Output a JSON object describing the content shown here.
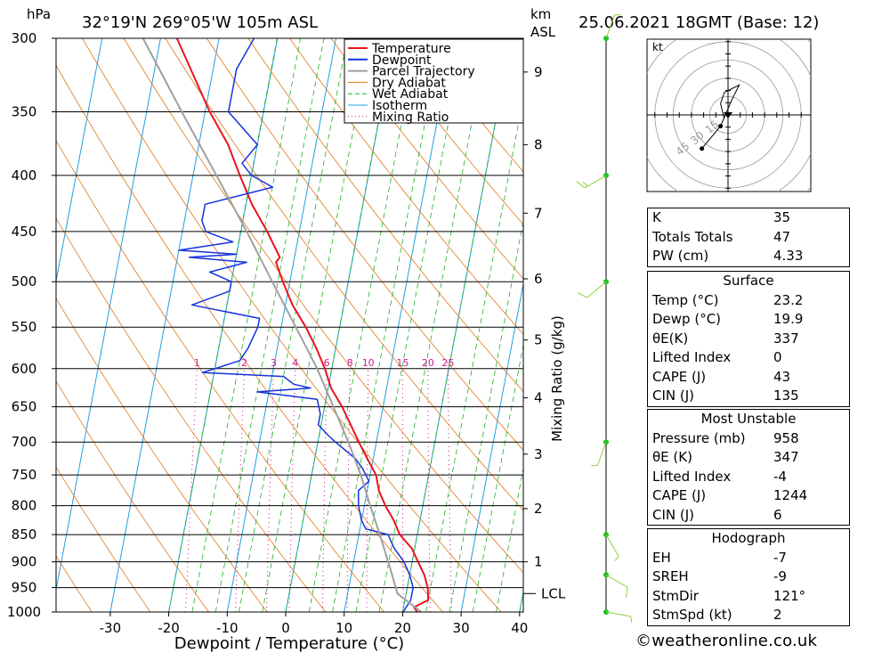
{
  "header": {
    "hpa": "hPa",
    "location": "32°19'N  269°05'W  105m  ASL",
    "km": "km",
    "asl": "ASL",
    "datetime": "25.06.2021  18GMT  (Base: 12)"
  },
  "chart_data": {
    "type": "line",
    "chart_kind": "skew-T log-P sounding",
    "xlabel": "Dewpoint / Temperature (°C)",
    "ylabel": "hPa",
    "y_scale": "log",
    "xlim": [
      -40,
      40
    ],
    "ylim": [
      1000,
      300
    ],
    "temperature_ticks": [
      "-30",
      "-20",
      "-10",
      "0",
      "10",
      "20",
      "30",
      "40"
    ],
    "pressure_ticks": [
      "300",
      "350",
      "400",
      "450",
      "500",
      "550",
      "600",
      "650",
      "700",
      "750",
      "800",
      "850",
      "900",
      "950",
      "1000"
    ],
    "height_km_ticks": [
      "1",
      "2",
      "3",
      "4",
      "5",
      "6",
      "7",
      "8",
      "9"
    ],
    "height_km_pressures": [
      900,
      805,
      718,
      638,
      565,
      497,
      433,
      375,
      322
    ],
    "lcl_label": "LCL",
    "lcl_pressure": 962,
    "mixing_ratio_axis_label": "Mixing Ratio (g/kg)",
    "mixing_ratio_values": [
      "1",
      "2",
      "3",
      "4",
      "6",
      "8",
      "10",
      "15",
      "20",
      "25"
    ],
    "legend": [
      "Temperature",
      "Dewpoint",
      "Parcel Trajectory",
      "Dry Adiabat",
      "Wet Adiabat",
      "Isotherm",
      "Mixing Ratio"
    ],
    "legend_position": "top-center",
    "colors": {
      "temperature": "#e8141e",
      "dewpoint": "#1432dc",
      "parcel": "#a0a0a0",
      "dry_adiabat": "#e07818",
      "wet_adiabat": "#20b020",
      "isotherm": "#20a0e0",
      "mixing_ratio": "#d01890",
      "wind": "#90d040"
    },
    "series": [
      {
        "name": "Temperature",
        "points": [
          [
            1000,
            22.5
          ],
          [
            990,
            21.8
          ],
          [
            975,
            24
          ],
          [
            950,
            23.5
          ],
          [
            925,
            22.5
          ],
          [
            900,
            21
          ],
          [
            875,
            19.5
          ],
          [
            850,
            17
          ],
          [
            825,
            15.5
          ],
          [
            800,
            13.6
          ],
          [
            775,
            12
          ],
          [
            750,
            11
          ],
          [
            725,
            9
          ],
          [
            700,
            7
          ],
          [
            650,
            3
          ],
          [
            625,
            0.5
          ],
          [
            600,
            -1.2
          ],
          [
            575,
            -3.3
          ],
          [
            550,
            -5.8
          ],
          [
            525,
            -8.8
          ],
          [
            500,
            -11.2
          ],
          [
            480,
            -13
          ],
          [
            475,
            -12.5
          ],
          [
            450,
            -15.5
          ],
          [
            425,
            -19
          ],
          [
            400,
            -22
          ],
          [
            375,
            -25
          ],
          [
            350,
            -29.2
          ],
          [
            300,
            -37.2
          ]
        ]
      },
      {
        "name": "Dewpoint",
        "points": [
          [
            1000,
            20.1
          ],
          [
            975,
            21
          ],
          [
            950,
            21
          ],
          [
            925,
            20
          ],
          [
            900,
            18.6
          ],
          [
            875,
            16.5
          ],
          [
            850,
            15
          ],
          [
            840,
            11
          ],
          [
            825,
            10
          ],
          [
            800,
            9
          ],
          [
            775,
            8.5
          ],
          [
            760,
            10
          ],
          [
            740,
            8.5
          ],
          [
            725,
            7
          ],
          [
            700,
            3
          ],
          [
            690,
            1.5
          ],
          [
            675,
            -0.5
          ],
          [
            660,
            -0.5
          ],
          [
            650,
            -1
          ],
          [
            640,
            -1.5
          ],
          [
            630,
            -12
          ],
          [
            625,
            -3
          ],
          [
            620,
            -6
          ],
          [
            610,
            -8
          ],
          [
            605,
            -22
          ],
          [
            600,
            -20
          ],
          [
            590,
            -16
          ],
          [
            575,
            -15
          ],
          [
            550,
            -14
          ],
          [
            540,
            -14
          ],
          [
            525,
            -26
          ],
          [
            510,
            -20
          ],
          [
            500,
            -20
          ],
          [
            490,
            -24
          ],
          [
            480,
            -18
          ],
          [
            475,
            -28
          ],
          [
            472,
            -20
          ],
          [
            468,
            -30
          ],
          [
            460,
            -21
          ],
          [
            450,
            -26
          ],
          [
            440,
            -27
          ],
          [
            425,
            -27
          ],
          [
            410,
            -16
          ],
          [
            400,
            -20
          ],
          [
            390,
            -22
          ],
          [
            375,
            -20
          ],
          [
            350,
            -26
          ],
          [
            320,
            -26
          ],
          [
            300,
            -24
          ]
        ]
      },
      {
        "name": "Parcel Trajectory",
        "points": [
          [
            1000,
            23.2
          ],
          [
            962,
            18.5
          ],
          [
            925,
            17
          ],
          [
            850,
            13.6
          ],
          [
            800,
            11
          ],
          [
            750,
            8.4
          ],
          [
            700,
            5.2
          ],
          [
            650,
            1.5
          ],
          [
            600,
            -2.5
          ],
          [
            550,
            -7.5
          ],
          [
            500,
            -13
          ],
          [
            450,
            -19
          ],
          [
            400,
            -26
          ],
          [
            350,
            -34
          ],
          [
            300,
            -43
          ]
        ]
      }
    ],
    "hodograph": {
      "unit_label": "kt",
      "ring_labels": [
        "15",
        "30",
        "45"
      ],
      "points": [
        [
          -1,
          -1
        ],
        [
          -2,
          3
        ],
        [
          -1,
          6
        ],
        [
          3,
          8
        ],
        [
          1,
          4
        ],
        [
          -2,
          -3
        ],
        [
          -7,
          -9
        ]
      ]
    },
    "wind_barbs": [
      {
        "pressure": 300,
        "dir": 20,
        "speed": 5
      },
      {
        "pressure": 400,
        "dir": 240,
        "speed": 15
      },
      {
        "pressure": 500,
        "dir": 230,
        "speed": 10
      },
      {
        "pressure": 700,
        "dir": 200,
        "speed": 5
      },
      {
        "pressure": 850,
        "dir": 150,
        "speed": 5
      },
      {
        "pressure": 925,
        "dir": 120,
        "speed": 10
      },
      {
        "pressure": 1000,
        "dir": 100,
        "speed": 5
      }
    ]
  },
  "stats": {
    "general": [
      {
        "label": "K",
        "value": "35"
      },
      {
        "label": "Totals Totals",
        "value": "47"
      },
      {
        "label": "PW (cm)",
        "value": "4.33"
      }
    ],
    "surface_title": "Surface",
    "surface": [
      {
        "label": "Temp (°C)",
        "value": "23.2"
      },
      {
        "label": "Dewp (°C)",
        "value": "19.9"
      },
      {
        "label": "θE(K)",
        "value": "337"
      },
      {
        "label": "Lifted Index",
        "value": "0"
      },
      {
        "label": "CAPE (J)",
        "value": "43"
      },
      {
        "label": "CIN (J)",
        "value": "135"
      }
    ],
    "mu_title": "Most Unstable",
    "most_unstable": [
      {
        "label": "Pressure (mb)",
        "value": "958"
      },
      {
        "label": "θE (K)",
        "value": "347"
      },
      {
        "label": "Lifted Index",
        "value": "-4"
      },
      {
        "label": "CAPE (J)",
        "value": "1244"
      },
      {
        "label": "CIN (J)",
        "value": "6"
      }
    ],
    "hodo_title": "Hodograph",
    "hodograph": [
      {
        "label": "EH",
        "value": "-7"
      },
      {
        "label": "SREH",
        "value": "-9"
      },
      {
        "label": "StmDir",
        "value": "121°"
      },
      {
        "label": "StmSpd (kt)",
        "value": "2"
      }
    ]
  },
  "footer": "©weatheronline.co.uk"
}
